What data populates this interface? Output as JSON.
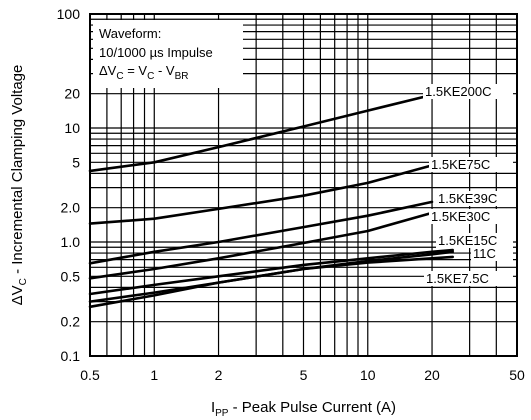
{
  "chart_data": {
    "type": "line",
    "title": "",
    "xscale": "log",
    "yscale": "log",
    "xlim": [
      0.5,
      50
    ],
    "ylim": [
      0.1,
      100
    ],
    "grid": true,
    "xticks": [
      {
        "value": 0.5,
        "label": "0.5"
      },
      {
        "value": 1,
        "label": "1"
      },
      {
        "value": 2,
        "label": "2"
      },
      {
        "value": 5,
        "label": "5"
      },
      {
        "value": 10,
        "label": "10"
      },
      {
        "value": 20,
        "label": "20"
      },
      {
        "value": 50,
        "label": "50"
      }
    ],
    "yticks": [
      {
        "value": 0.1,
        "label": "0.1"
      },
      {
        "value": 0.2,
        "label": "0.2"
      },
      {
        "value": 0.5,
        "label": "0.5"
      },
      {
        "value": 1,
        "label": "1.0"
      },
      {
        "value": 2,
        "label": "2.0"
      },
      {
        "value": 5,
        "label": "5"
      },
      {
        "value": 10,
        "label": "10"
      },
      {
        "value": 20,
        "label": "20"
      },
      {
        "value": 100,
        "label": "100"
      }
    ],
    "xlabel": {
      "prefix": "I",
      "sub": "PP",
      "suffix": " - Peak Pulse Current (A)"
    },
    "ylabel": {
      "prefix": "ΔV",
      "sub": "C",
      "suffix": " - Incremental Clamping Voltage"
    },
    "annotation": {
      "line1": "Waveform:",
      "line2": "10/1000 µs Impulse",
      "line3_prefix": "ΔV",
      "line3_sub1": "C",
      "line3_mid": " = V",
      "line3_sub2": "C",
      "line3_mid2": " - V",
      "line3_sub3": "BR"
    },
    "series": [
      {
        "name": "1.5KE200C",
        "x": [
          0.5,
          1,
          2,
          5,
          10,
          20
        ],
        "y": [
          4.2,
          5.0,
          6.8,
          10.3,
          14.2,
          19.5
        ]
      },
      {
        "name": "1.5KE75C",
        "x": [
          0.5,
          1,
          2,
          5,
          10,
          20
        ],
        "y": [
          1.45,
          1.6,
          1.95,
          2.55,
          3.3,
          4.7
        ]
      },
      {
        "name": "1.5KE39C",
        "x": [
          0.5,
          1,
          2,
          5,
          10,
          20
        ],
        "y": [
          0.65,
          0.82,
          1.0,
          1.35,
          1.7,
          2.25
        ]
      },
      {
        "name": "1.5KE30C",
        "x": [
          0.5,
          1,
          2,
          5,
          10,
          20
        ],
        "y": [
          0.48,
          0.58,
          0.72,
          0.98,
          1.25,
          1.8
        ]
      },
      {
        "name": "1.5KE15C",
        "x": [
          0.5,
          1,
          2,
          5,
          10,
          20,
          25
        ],
        "y": [
          0.35,
          0.42,
          0.5,
          0.63,
          0.72,
          0.82,
          0.85
        ]
      },
      {
        "name": "11C",
        "x": [
          0.5,
          1,
          2,
          5,
          10,
          20,
          25
        ],
        "y": [
          0.3,
          0.36,
          0.44,
          0.58,
          0.68,
          0.78,
          0.82
        ]
      },
      {
        "name": "1.5KE7.5C",
        "x": [
          0.5,
          1,
          2,
          5,
          10,
          20,
          25
        ],
        "y": [
          0.27,
          0.34,
          0.44,
          0.58,
          0.66,
          0.72,
          0.74
        ]
      }
    ]
  }
}
